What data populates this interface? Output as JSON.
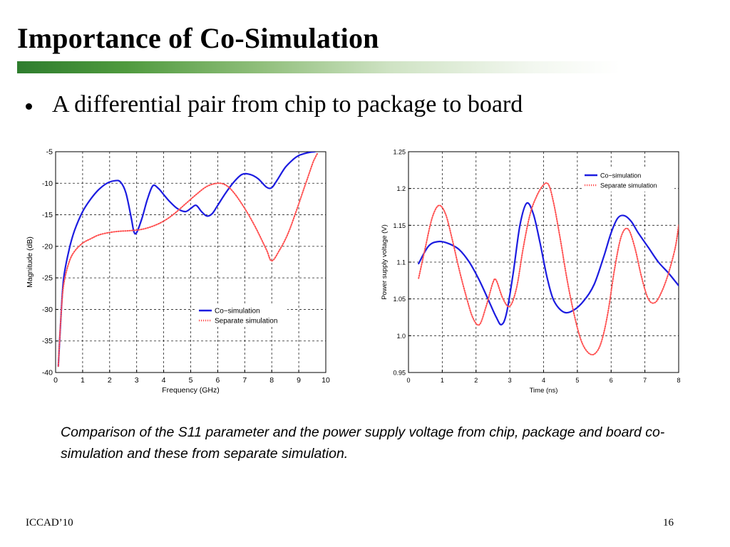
{
  "slide": {
    "title": "Importance of Co-Simulation",
    "bullet": "A differential pair from chip to package to board",
    "caption": "Comparison of the S11 parameter and the power supply voltage from chip, package and board co-simulation and these from separate simulation.",
    "footer_left": "ICCAD’10",
    "page_number": "16"
  },
  "colors": {
    "co_simulation": "#1c1ce0",
    "separate_simulation": "#ff5050",
    "title_bar_start": "#2e7d2e"
  },
  "chart_data": [
    {
      "type": "line",
      "xlabel": "Frequency (GHz)",
      "ylabel": "Magnitude (dB)",
      "xlim": [
        0,
        10
      ],
      "ylim": [
        -40,
        -5
      ],
      "xticks": [
        0,
        1,
        2,
        3,
        4,
        5,
        6,
        7,
        8,
        9,
        10
      ],
      "yticks": [
        -5,
        -10,
        -15,
        -20,
        -25,
        -30,
        -35,
        -40
      ],
      "grid": true,
      "legend_position": "lower-right",
      "series": [
        {
          "name": "Co−simulation",
          "style": "solid",
          "x": [
            0.1,
            0.2,
            0.3,
            0.5,
            0.7,
            1.0,
            1.3,
            1.6,
            1.9,
            2.2,
            2.4,
            2.6,
            2.8,
            2.9,
            3.0,
            3.2,
            3.4,
            3.6,
            3.8,
            4.0,
            4.2,
            4.5,
            4.8,
            5.0,
            5.2,
            5.4,
            5.6,
            5.8,
            6.0,
            6.3,
            6.6,
            6.9,
            7.2,
            7.5,
            7.8,
            8.0,
            8.2,
            8.5,
            8.8,
            9.0,
            9.2,
            9.4,
            9.6
          ],
          "y": [
            -39,
            -31,
            -25,
            -20.5,
            -17.5,
            -14.5,
            -12.5,
            -11,
            -10,
            -9.6,
            -9.8,
            -11.5,
            -15.5,
            -17.7,
            -17.8,
            -15.5,
            -12.5,
            -10.4,
            -10.8,
            -11.8,
            -12.8,
            -14,
            -14.5,
            -14.0,
            -13.5,
            -14.5,
            -15.2,
            -14.8,
            -13.5,
            -11.5,
            -9.8,
            -8.6,
            -8.6,
            -9.3,
            -10.6,
            -10.7,
            -9.5,
            -7.5,
            -6.2,
            -5.6,
            -5.3,
            -5.1,
            -5.0
          ]
        },
        {
          "name": "Separate simulation",
          "style": "dotted",
          "x": [
            0.1,
            0.2,
            0.3,
            0.5,
            0.7,
            1.0,
            1.3,
            1.6,
            2.0,
            2.4,
            2.8,
            3.2,
            3.6,
            4.0,
            4.4,
            4.8,
            5.2,
            5.6,
            6.0,
            6.3,
            6.6,
            7.0,
            7.4,
            7.8,
            8.0,
            8.3,
            8.6,
            8.9,
            9.1,
            9.3,
            9.5,
            9.6,
            9.7
          ],
          "y": [
            -39,
            -31,
            -26,
            -22.5,
            -20.8,
            -19.5,
            -18.8,
            -18.2,
            -17.8,
            -17.6,
            -17.5,
            -17.3,
            -16.8,
            -16.0,
            -14.8,
            -13.3,
            -11.8,
            -10.5,
            -10.0,
            -10.3,
            -11.5,
            -14.0,
            -17.0,
            -20.5,
            -22.3,
            -20.5,
            -18.0,
            -14.5,
            -12.0,
            -9.5,
            -7.0,
            -6.0,
            -5.2
          ]
        }
      ]
    },
    {
      "type": "line",
      "xlabel": "Time (ns)",
      "ylabel": "Power supply voltage (V)",
      "xlim": [
        0,
        8
      ],
      "ylim": [
        0.95,
        1.25
      ],
      "xticks": [
        0,
        1,
        2,
        3,
        4,
        5,
        6,
        7,
        8
      ],
      "yticks": [
        0.95,
        1.0,
        1.05,
        1.1,
        1.15,
        1.2,
        1.25
      ],
      "grid": true,
      "legend_position": "top-right",
      "series": [
        {
          "name": "Co−simulation",
          "style": "solid",
          "x": [
            0.3,
            0.6,
            0.9,
            1.2,
            1.5,
            1.8,
            2.1,
            2.4,
            2.6,
            2.75,
            2.9,
            3.1,
            3.3,
            3.5,
            3.7,
            3.9,
            4.1,
            4.3,
            4.6,
            4.9,
            5.2,
            5.5,
            5.8,
            6.0,
            6.2,
            6.4,
            6.6,
            6.8,
            7.1,
            7.4,
            7.7,
            8.0
          ],
          "y": [
            1.098,
            1.122,
            1.128,
            1.125,
            1.117,
            1.1,
            1.075,
            1.045,
            1.025,
            1.015,
            1.03,
            1.085,
            1.15,
            1.18,
            1.165,
            1.125,
            1.08,
            1.048,
            1.032,
            1.035,
            1.048,
            1.07,
            1.11,
            1.14,
            1.16,
            1.163,
            1.155,
            1.14,
            1.12,
            1.1,
            1.085,
            1.068
          ]
        },
        {
          "name": "Separate simulation",
          "style": "dotted",
          "x": [
            0.3,
            0.5,
            0.7,
            0.9,
            1.1,
            1.3,
            1.5,
            1.7,
            1.9,
            2.1,
            2.3,
            2.5,
            2.6,
            2.8,
            3.0,
            3.2,
            3.4,
            3.6,
            3.8,
            4.0,
            4.15,
            4.3,
            4.5,
            4.7,
            4.9,
            5.1,
            5.3,
            5.5,
            5.7,
            5.9,
            6.1,
            6.3,
            6.5,
            6.7,
            6.9,
            7.1,
            7.3,
            7.5,
            7.7,
            7.9,
            8.0
          ],
          "y": [
            1.078,
            1.12,
            1.16,
            1.177,
            1.165,
            1.13,
            1.09,
            1.055,
            1.025,
            1.015,
            1.04,
            1.072,
            1.075,
            1.05,
            1.04,
            1.065,
            1.12,
            1.165,
            1.19,
            1.205,
            1.205,
            1.18,
            1.13,
            1.075,
            1.03,
            0.995,
            0.978,
            0.975,
            0.99,
            1.03,
            1.09,
            1.135,
            1.145,
            1.12,
            1.08,
            1.05,
            1.045,
            1.06,
            1.085,
            1.12,
            1.15
          ]
        }
      ]
    }
  ]
}
